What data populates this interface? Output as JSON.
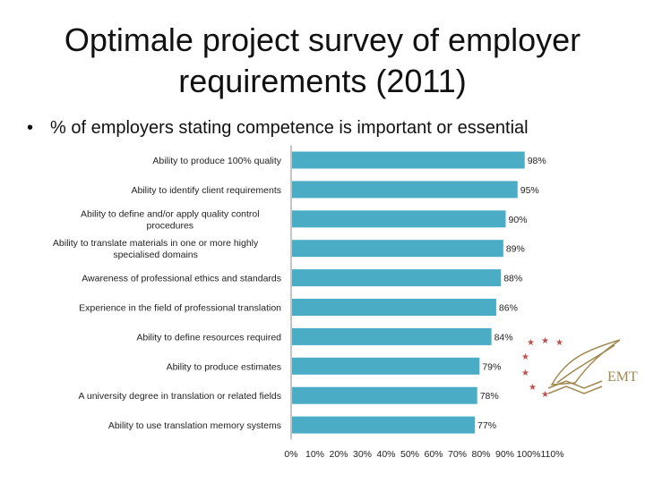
{
  "slide": {
    "title_line1": "Optimale project survey of employer",
    "title_line2": "requirements (2011)",
    "bullet": "% of employers stating competence is important or essential"
  },
  "logo": {
    "text": "EMT",
    "icon": "emt-logo-stars-quill"
  },
  "colors": {
    "bar": "#4BACC6",
    "axis": "#888888"
  },
  "chart_data": {
    "type": "bar",
    "orientation": "horizontal",
    "categories": [
      "Ability to produce 100% quality",
      "Ability to identify client requirements",
      "Ability to define and/or apply quality control procedures",
      "Ability to translate materials in one or more highly specialised domains",
      "Awareness of professional ethics and standards",
      "Experience in the field of professional translation",
      "Ability to define resources required",
      "Ability to produce estimates",
      "A university degree in translation or related fields",
      "Ability to use translation memory systems"
    ],
    "category_lines": [
      [
        "Ability to produce 100% quality"
      ],
      [
        "Ability to identify client requirements"
      ],
      [
        "Ability to define and/or apply quality control",
        "procedures"
      ],
      [
        "Ability to translate materials in one or more highly",
        "specialised domains"
      ],
      [
        "Awareness of professional ethics and standards"
      ],
      [
        "Experience in the field of professional translation"
      ],
      [
        "Ability to define resources required"
      ],
      [
        "Ability to produce estimates"
      ],
      [
        "A university degree in translation or related fields"
      ],
      [
        "Ability to use translation memory systems"
      ]
    ],
    "values": [
      98,
      95,
      90,
      89,
      88,
      86,
      84,
      79,
      78,
      77
    ],
    "value_labels": [
      "98%",
      "95%",
      "90%",
      "89%",
      "88%",
      "86%",
      "84%",
      "79%",
      "78%",
      "77%"
    ],
    "xlim": [
      0,
      110
    ],
    "xticks": [
      "0%",
      "10%",
      "20%",
      "30%",
      "40%",
      "50%",
      "60%",
      "70%",
      "80%",
      "90%",
      "100%",
      "110%"
    ],
    "grid": false,
    "legend": "none"
  }
}
